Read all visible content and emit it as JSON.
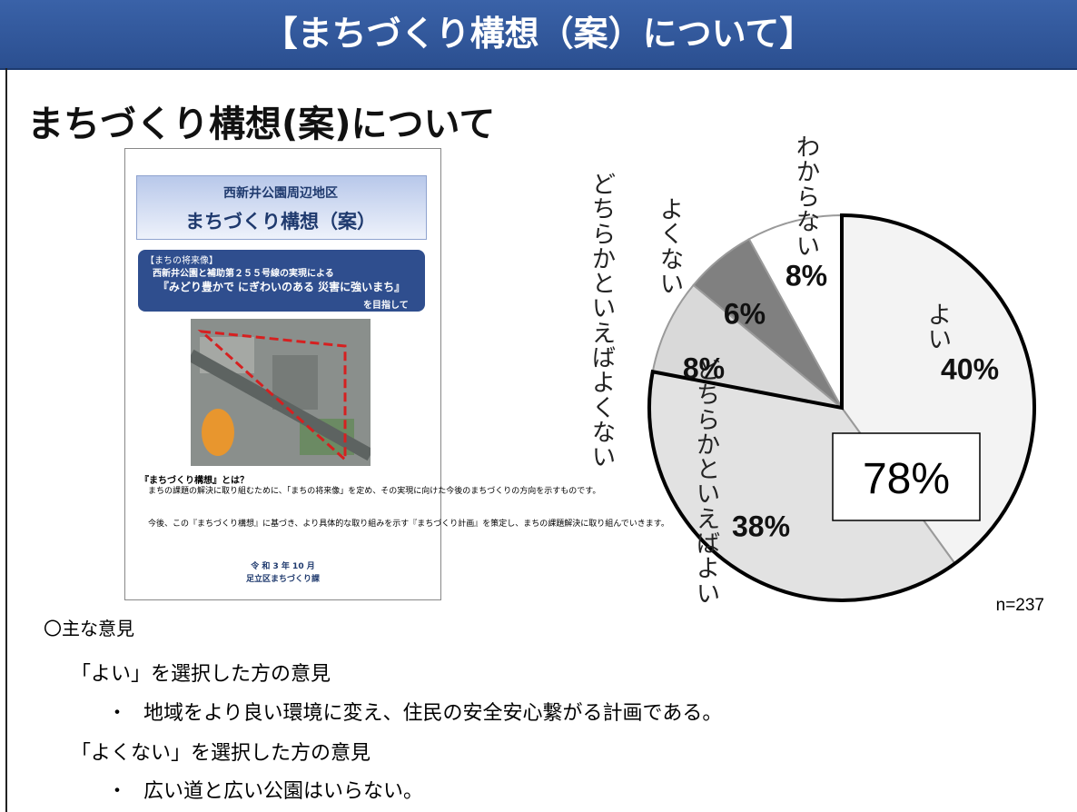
{
  "header": {
    "title": "【まちづくり構想（案）について】"
  },
  "heading": "まちづくり構想(案)について",
  "brochure": {
    "area": "西新井公園周辺地区",
    "title": "まちづくり構想（案）",
    "vision_label": "【まちの将来像】",
    "vision_sub": "西新井公園と補助第２５５号線の実現による",
    "vision": "『みどり豊かで にぎわいのある 災害に強いまち』",
    "vision_tail": "を目指して",
    "what_is": "『まちづくり構想』とは？",
    "para1": "まちの課題の解決に取り組むために、「まちの将来像」を定め、その実現に向けた今後のまちづくりの方向を示すものです。",
    "para2": "今後、この『まちづくり構想』に基づき、より具体的な取り組みを示す『まちづくり計画』を策定し、まちの課題解決に取り組んでいきます。",
    "date": "令 和 3 年 10 月",
    "dept": "足立区まちづくり課"
  },
  "chart_data": {
    "type": "pie",
    "categories": [
      "よい",
      "どちらかと\nいえばよい",
      "どちらか\nといえば\nよくない",
      "よくない",
      "わからない"
    ],
    "values": [
      40,
      38,
      8,
      6,
      8
    ],
    "value_labels": [
      "40%",
      "38%",
      "8%",
      "6%",
      "8%"
    ],
    "colors": [
      "#f3f3f3",
      "#e2e2e2",
      "#d9d9d9",
      "#808080",
      "#ffffff"
    ],
    "annotations": [
      "78%",
      "n=237"
    ]
  },
  "opinions": {
    "heading": "〇主な意見",
    "groups": [
      {
        "title": "「よい」を選択した方の意見",
        "bullet": "・",
        "items": [
          "地域をより良い環境に変え、住民の安全安心繋がる計画である。"
        ]
      },
      {
        "title": "「よくない」を選択した方の意見",
        "bullet": "・",
        "items": [
          "広い道と広い公園はいらない。"
        ]
      }
    ]
  }
}
